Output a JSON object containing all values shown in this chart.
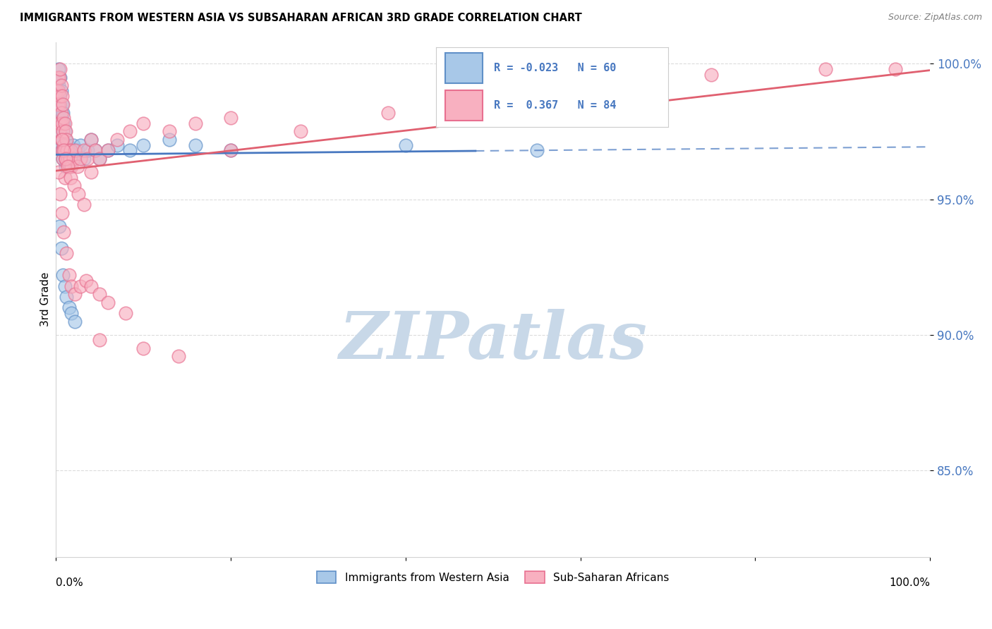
{
  "title": "IMMIGRANTS FROM WESTERN ASIA VS SUBSAHARAN AFRICAN 3RD GRADE CORRELATION CHART",
  "source": "Source: ZipAtlas.com",
  "ylabel": "3rd Grade",
  "ylim": [
    0.818,
    1.008
  ],
  "xlim": [
    0.0,
    1.0
  ],
  "yticks": [
    0.85,
    0.9,
    0.95,
    1.0
  ],
  "ytick_labels": [
    "85.0%",
    "90.0%",
    "95.0%",
    "100.0%"
  ],
  "blue_R": -0.023,
  "blue_N": 60,
  "pink_R": 0.367,
  "pink_N": 84,
  "blue_fill_color": "#a8c8e8",
  "pink_fill_color": "#f8b0c0",
  "blue_edge_color": "#6090c8",
  "pink_edge_color": "#e87090",
  "blue_line_color": "#4878c0",
  "pink_line_color": "#e06070",
  "tick_color": "#4878c0",
  "watermark_color": "#c8d8e8",
  "blue_scatter_x": [
    0.001,
    0.002,
    0.002,
    0.003,
    0.003,
    0.003,
    0.004,
    0.004,
    0.004,
    0.005,
    0.005,
    0.005,
    0.006,
    0.006,
    0.006,
    0.007,
    0.007,
    0.007,
    0.008,
    0.008,
    0.008,
    0.009,
    0.009,
    0.01,
    0.01,
    0.011,
    0.011,
    0.012,
    0.013,
    0.014,
    0.015,
    0.016,
    0.017,
    0.018,
    0.02,
    0.022,
    0.025,
    0.028,
    0.032,
    0.036,
    0.04,
    0.045,
    0.05,
    0.06,
    0.07,
    0.085,
    0.1,
    0.13,
    0.16,
    0.2,
    0.004,
    0.006,
    0.008,
    0.01,
    0.012,
    0.015,
    0.018,
    0.022,
    0.4,
    0.55
  ],
  "blue_scatter_y": [
    0.993,
    0.99,
    0.985,
    0.998,
    0.992,
    0.98,
    0.988,
    0.978,
    0.97,
    0.995,
    0.985,
    0.975,
    0.99,
    0.98,
    0.972,
    0.985,
    0.978,
    0.968,
    0.982,
    0.975,
    0.965,
    0.978,
    0.968,
    0.975,
    0.965,
    0.972,
    0.962,
    0.968,
    0.965,
    0.97,
    0.968,
    0.962,
    0.965,
    0.968,
    0.97,
    0.965,
    0.968,
    0.97,
    0.965,
    0.968,
    0.972,
    0.968,
    0.965,
    0.968,
    0.97,
    0.968,
    0.97,
    0.972,
    0.97,
    0.968,
    0.94,
    0.932,
    0.922,
    0.918,
    0.914,
    0.91,
    0.908,
    0.905,
    0.97,
    0.968
  ],
  "pink_scatter_x": [
    0.001,
    0.002,
    0.002,
    0.003,
    0.003,
    0.004,
    0.004,
    0.004,
    0.005,
    0.005,
    0.005,
    0.006,
    0.006,
    0.006,
    0.007,
    0.007,
    0.007,
    0.008,
    0.008,
    0.008,
    0.009,
    0.009,
    0.01,
    0.01,
    0.01,
    0.011,
    0.011,
    0.012,
    0.013,
    0.014,
    0.015,
    0.016,
    0.017,
    0.018,
    0.02,
    0.022,
    0.025,
    0.028,
    0.032,
    0.036,
    0.04,
    0.045,
    0.05,
    0.06,
    0.07,
    0.085,
    0.1,
    0.13,
    0.16,
    0.2,
    0.003,
    0.005,
    0.007,
    0.009,
    0.012,
    0.015,
    0.018,
    0.022,
    0.028,
    0.035,
    0.04,
    0.05,
    0.06,
    0.08,
    0.1,
    0.14,
    0.2,
    0.28,
    0.38,
    0.5,
    0.65,
    0.75,
    0.88,
    0.96,
    0.007,
    0.009,
    0.011,
    0.014,
    0.017,
    0.021,
    0.026,
    0.032,
    0.04,
    0.05
  ],
  "pink_scatter_y": [
    0.99,
    0.995,
    0.985,
    0.99,
    0.978,
    0.995,
    0.985,
    0.975,
    0.998,
    0.988,
    0.978,
    0.992,
    0.982,
    0.972,
    0.988,
    0.978,
    0.968,
    0.985,
    0.975,
    0.965,
    0.98,
    0.97,
    0.978,
    0.968,
    0.958,
    0.975,
    0.965,
    0.972,
    0.968,
    0.965,
    0.962,
    0.965,
    0.968,
    0.962,
    0.965,
    0.968,
    0.962,
    0.965,
    0.968,
    0.965,
    0.972,
    0.968,
    0.965,
    0.968,
    0.972,
    0.975,
    0.978,
    0.975,
    0.978,
    0.98,
    0.96,
    0.952,
    0.945,
    0.938,
    0.93,
    0.922,
    0.918,
    0.915,
    0.918,
    0.92,
    0.918,
    0.915,
    0.912,
    0.908,
    0.895,
    0.892,
    0.968,
    0.975,
    0.982,
    0.988,
    0.992,
    0.996,
    0.998,
    0.998,
    0.972,
    0.968,
    0.965,
    0.962,
    0.958,
    0.955,
    0.952,
    0.948,
    0.96,
    0.898
  ]
}
